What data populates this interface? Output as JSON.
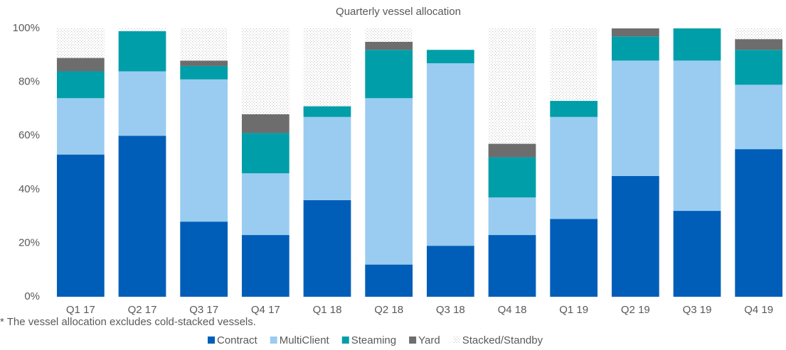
{
  "chart_data": {
    "type": "stacked_bar",
    "title": "Quarterly vessel allocation",
    "categories": [
      "Q1 17",
      "Q2 17",
      "Q3 17",
      "Q4 17",
      "Q1 18",
      "Q2 18",
      "Q3 18",
      "Q4 18",
      "Q1 19",
      "Q2 19",
      "Q3 19",
      "Q4 19"
    ],
    "series": [
      {
        "name": "Contract",
        "color": "#005eb8",
        "values": [
          53,
          60,
          28,
          23,
          36,
          12,
          19,
          23,
          29,
          45,
          32,
          55
        ]
      },
      {
        "name": "MultiClient",
        "color": "#99ccf0",
        "values": [
          21,
          24,
          53,
          23,
          31,
          62,
          68,
          14,
          38,
          43,
          56,
          24
        ]
      },
      {
        "name": "Steaming",
        "color": "#009ea8",
        "values": [
          10,
          15,
          5,
          15,
          4,
          18,
          5,
          15,
          6,
          9,
          12,
          13
        ]
      },
      {
        "name": "Yard",
        "color": "#6d6d6d",
        "values": [
          5,
          0,
          2,
          7,
          0,
          3,
          0,
          5,
          0,
          3,
          0,
          4
        ]
      },
      {
        "name": "Stacked/Standby",
        "color": "#bfbfbf",
        "pattern": "dots",
        "values": [
          11,
          1,
          12,
          32,
          29,
          5,
          0,
          43,
          27,
          0,
          0,
          4
        ]
      }
    ],
    "ylim": [
      0,
      100
    ],
    "yticks": [
      {
        "value": 0,
        "label": "0%"
      },
      {
        "value": 20,
        "label": "20%"
      },
      {
        "value": 40,
        "label": "40%"
      },
      {
        "value": 60,
        "label": "60%"
      },
      {
        "value": 80,
        "label": "80%"
      },
      {
        "value": 100,
        "label": "100%"
      }
    ],
    "footnote": "* The vessel allocation excludes cold-stacked vessels.",
    "legend": "bottom"
  }
}
